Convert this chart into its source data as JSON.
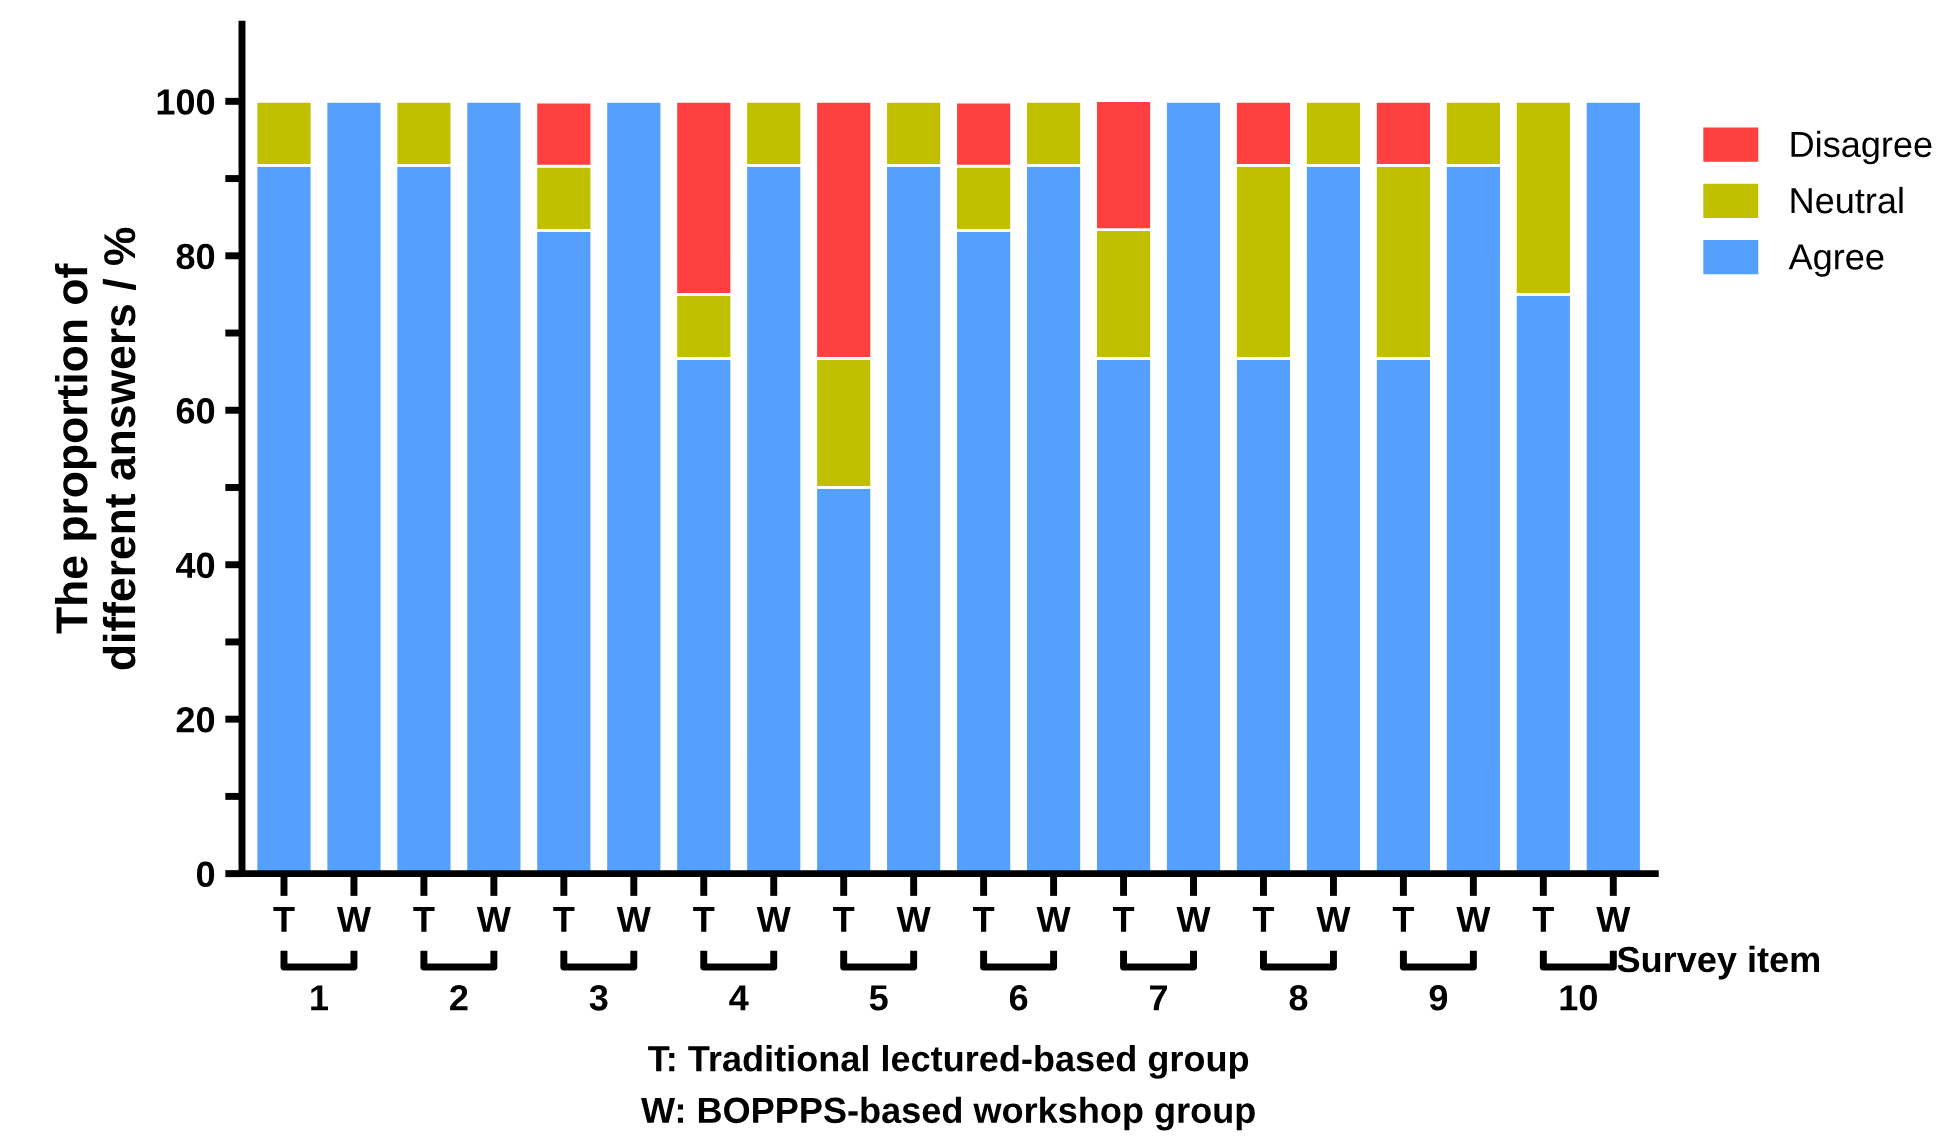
{
  "chart_data": {
    "type": "bar",
    "stacked": true,
    "ylabel": "The proportion of\ndifferent answers / %",
    "xlabel": "Survey item",
    "categories": [
      "T",
      "W",
      "T",
      "W",
      "T",
      "W",
      "T",
      "W",
      "T",
      "W",
      "T",
      "W",
      "T",
      "W",
      "T",
      "W",
      "T",
      "W",
      "T",
      "W"
    ],
    "series": [
      {
        "name": "Agree",
        "color": "#55a0ff",
        "values": [
          91.7,
          100,
          91.7,
          100,
          83.3,
          100,
          66.7,
          91.7,
          50,
          91.7,
          83.3,
          91.7,
          66.7,
          100,
          66.7,
          91.7,
          66.7,
          91.7,
          75,
          100
        ]
      },
      {
        "name": "Neutral",
        "color": "#c0c000",
        "values": [
          8.3,
          null,
          8.3,
          null,
          8.3,
          null,
          8.3,
          8.3,
          16.7,
          8.3,
          8.3,
          8.3,
          16.7,
          null,
          25,
          8.3,
          25,
          8.3,
          25,
          null
        ]
      },
      {
        "name": "Disagree",
        "color": "#ff4040",
        "values": [
          null,
          null,
          null,
          null,
          8.3,
          null,
          25,
          null,
          33.3,
          null,
          8.3,
          null,
          16.7,
          null,
          8.3,
          null,
          8.3,
          null,
          null,
          null
        ]
      }
    ],
    "ylim": [
      0,
      110
    ],
    "yticks": [
      0,
      {
        "value": 10,
        "label": null
      },
      20,
      {
        "value": 30,
        "label": null
      },
      40,
      {
        "value": 50,
        "label": null
      },
      60,
      {
        "value": 70,
        "label": null
      },
      80,
      {
        "value": 90,
        "label": null
      },
      100
    ],
    "legend": "top right",
    "grid": false,
    "annotations": [
      "1",
      "2",
      "3",
      "4",
      "5",
      "6",
      "7",
      "8",
      "9",
      "10",
      "T: Traditional lectured-based group",
      "W: BOPPPS-based workshop group"
    ]
  }
}
